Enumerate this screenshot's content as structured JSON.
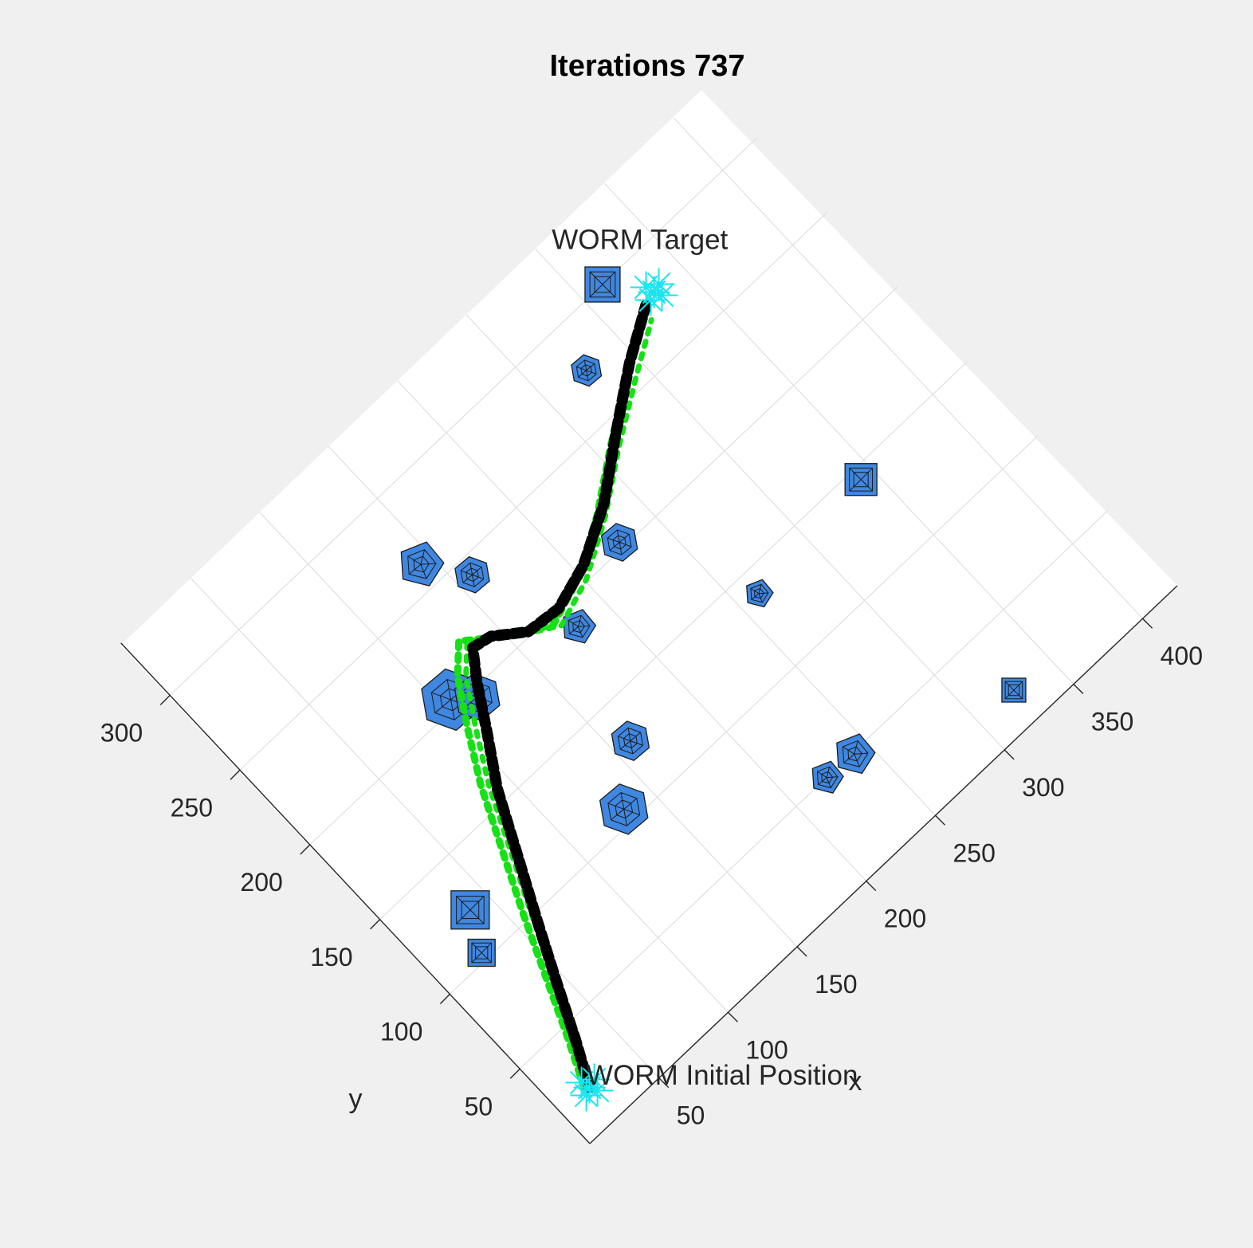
{
  "chart_data": {
    "type": "scatter",
    "title": "Iterations 737",
    "xlabel": "x",
    "ylabel": "y",
    "xlim": [
      0,
      425
    ],
    "ylim": [
      0,
      335
    ],
    "grid": true,
    "x_ticks": [
      50,
      100,
      150,
      200,
      250,
      300,
      350,
      400
    ],
    "y_ticks": [
      50,
      100,
      150,
      200,
      250,
      300
    ],
    "x_tick_labels": [
      "50",
      "100",
      "150",
      "200",
      "250",
      "300",
      "350",
      "400"
    ],
    "y_tick_labels": [
      "50",
      "100",
      "150",
      "200",
      "250",
      "300"
    ],
    "annotations": [
      {
        "text": "WORM Target",
        "x": 340,
        "y": 300
      },
      {
        "text": "WORM Initial Position",
        "x": 20,
        "y": 22
      }
    ],
    "start_marker": {
      "x": 20,
      "y": 20
    },
    "target_marker": {
      "x": 330,
      "y": 280
    },
    "path_black": [
      [
        20,
        20
      ],
      [
        32,
        42
      ],
      [
        45,
        68
      ],
      [
        60,
        97
      ],
      [
        76,
        127
      ],
      [
        92,
        157
      ],
      [
        108,
        180
      ],
      [
        122,
        201
      ],
      [
        133,
        215
      ],
      [
        144,
        213
      ],
      [
        160,
        202
      ],
      [
        180,
        200
      ],
      [
        205,
        207
      ],
      [
        235,
        222
      ],
      [
        265,
        243
      ],
      [
        295,
        263
      ],
      [
        322,
        278
      ]
    ],
    "path_green": [
      [
        18,
        22
      ],
      [
        30,
        46
      ],
      [
        43,
        74
      ],
      [
        57,
        104
      ],
      [
        72,
        134
      ],
      [
        87,
        164
      ],
      [
        102,
        188
      ],
      [
        117,
        210
      ],
      [
        130,
        222
      ],
      [
        150,
        208
      ],
      [
        172,
        196
      ],
      [
        198,
        204
      ],
      [
        228,
        220
      ],
      [
        258,
        240
      ],
      [
        288,
        258
      ],
      [
        316,
        274
      ]
    ],
    "obstacles": [
      {
        "shape": "hexagon",
        "x": 276,
        "y": 275,
        "size": 40
      },
      {
        "shape": "square",
        "x": 313,
        "y": 300,
        "size": 44
      },
      {
        "shape": "square",
        "x": 342,
        "y": 144,
        "size": 40
      },
      {
        "shape": "square",
        "x": 325,
        "y": 18,
        "size": 30
      },
      {
        "shape": "hexagon",
        "x": 227,
        "y": 203,
        "size": 48
      },
      {
        "shape": "pentagon",
        "x": 262,
        "y": 138,
        "size": 36
      },
      {
        "shape": "pentagon",
        "x": 143,
        "y": 262,
        "size": 58
      },
      {
        "shape": "hexagon",
        "x": 159,
        "y": 241,
        "size": 46
      },
      {
        "shape": "pentagon",
        "x": 181,
        "y": 187,
        "size": 44
      },
      {
        "shape": "hexagon",
        "x": 160,
        "y": 129,
        "size": 50
      },
      {
        "shape": "hexagon",
        "x": 106,
        "y": 204,
        "size": 78
      },
      {
        "shape": "hexagon",
        "x": 117,
        "y": 196,
        "size": 60
      },
      {
        "shape": "hexagon",
        "x": 133,
        "y": 107,
        "size": 64
      },
      {
        "shape": "pentagon",
        "x": 241,
        "y": 49,
        "size": 52
      },
      {
        "shape": "pentagon",
        "x": 222,
        "y": 50,
        "size": 42
      },
      {
        "shape": "square",
        "x": 38,
        "y": 123,
        "size": 48
      },
      {
        "shape": "square",
        "x": 27,
        "y": 104,
        "size": 34
      }
    ]
  }
}
